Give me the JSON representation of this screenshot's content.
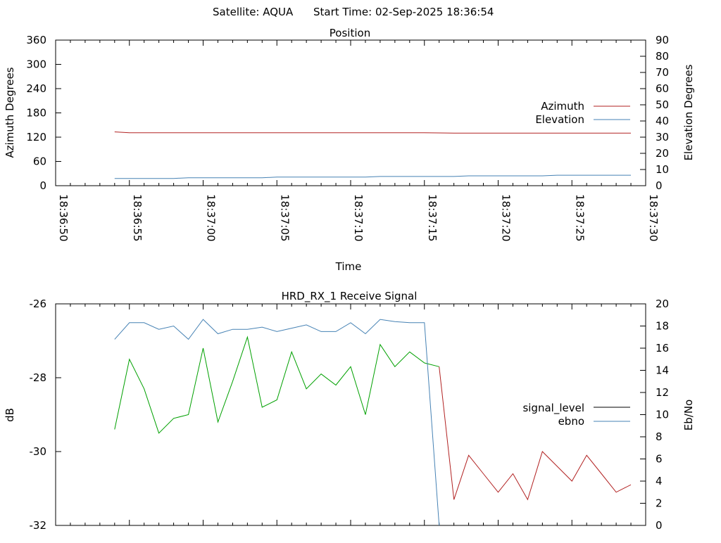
{
  "header": {
    "satellite": "Satellite: AQUA",
    "start_time": "Start Time: 02-Sep-2025 18:36:54"
  },
  "chart_data": [
    {
      "type": "line",
      "title": "Position",
      "xlabel": "Time",
      "ylabel": "Azimuth Degrees",
      "y2label": "Elevation Degrees",
      "ylim": [
        0,
        360
      ],
      "y2lim": [
        0,
        90
      ],
      "yticks": [
        "0",
        "60",
        "120",
        "180",
        "240",
        "300",
        "360"
      ],
      "y2ticks": [
        "0",
        "10",
        "20",
        "30",
        "40",
        "50",
        "60",
        "70",
        "80",
        "90"
      ],
      "xticks": [
        "18:36:50",
        "18:36:55",
        "18:37:00",
        "18:37:05",
        "18:37:10",
        "18:37:15",
        "18:37:20",
        "18:37:25",
        "18:37:30"
      ],
      "legend_position": "right",
      "series": [
        {
          "name": "Azimuth",
          "axis": "left",
          "color": "#b22222",
          "x": [
            "18:36:54",
            "18:36:55",
            "18:37:00",
            "18:37:05",
            "18:37:10",
            "18:37:15",
            "18:37:17",
            "18:37:20",
            "18:37:25",
            "18:37:29"
          ],
          "values": [
            133,
            131,
            131,
            131,
            131,
            131,
            130,
            130,
            130,
            130
          ]
        },
        {
          "name": "Elevation",
          "axis": "right",
          "color": "#4682b4",
          "x": [
            "18:36:54",
            "18:36:58",
            "18:36:59",
            "18:37:04",
            "18:37:05",
            "18:37:11",
            "18:37:12",
            "18:37:17",
            "18:37:18",
            "18:37:23",
            "18:37:24",
            "18:37:29"
          ],
          "values": [
            4.5,
            4.5,
            4.9,
            4.9,
            5.3,
            5.3,
            5.7,
            5.7,
            6.1,
            6.1,
            6.5,
            6.5
          ]
        }
      ]
    },
    {
      "type": "line",
      "title": "HRD_RX_1 Receive Signal",
      "xlabel": "",
      "ylabel": "dB",
      "y2label": "Eb/No",
      "ylim": [
        -32,
        -26
      ],
      "y2lim": [
        0,
        20
      ],
      "yticks": [
        "-32",
        "-30",
        "-28",
        "-26"
      ],
      "y2ticks": [
        "0",
        "2",
        "4",
        "6",
        "8",
        "10",
        "12",
        "14",
        "16",
        "18",
        "20"
      ],
      "legend_position": "right",
      "series": [
        {
          "name": "signal_level",
          "axis": "left",
          "color": "#00a000",
          "color_after_loss": "#b22222",
          "x": [
            0,
            1,
            2,
            3,
            4,
            5,
            6,
            7,
            8,
            9,
            10,
            11,
            12,
            13,
            14,
            15,
            16,
            17,
            18,
            19,
            20,
            21,
            22,
            23,
            24,
            25,
            26,
            27,
            28,
            29,
            30,
            31,
            32,
            33,
            34,
            35
          ],
          "values": [
            -29.4,
            -27.5,
            -28.3,
            -29.5,
            -29.1,
            -29.0,
            -27.2,
            -29.2,
            -28.1,
            -26.9,
            -28.8,
            -28.6,
            -27.3,
            -28.3,
            -27.9,
            -28.2,
            -27.7,
            -29.0,
            -27.1,
            -27.7,
            -27.3,
            -27.6,
            -27.7,
            -31.3,
            -30.1,
            -30.6,
            -31.1,
            -30.6,
            -31.3,
            -30.0,
            -30.4,
            -30.8,
            -30.1,
            -30.6,
            -31.1,
            -30.9
          ]
        },
        {
          "name": "ebno",
          "axis": "right",
          "color": "#4682b4",
          "x": [
            0,
            1,
            2,
            3,
            4,
            5,
            6,
            7,
            8,
            9,
            10,
            11,
            12,
            13,
            14,
            15,
            16,
            17,
            18,
            19,
            20,
            21,
            22
          ],
          "values": [
            16.8,
            18.3,
            18.3,
            17.7,
            18.0,
            16.8,
            18.6,
            17.3,
            17.7,
            17.7,
            17.9,
            17.5,
            17.8,
            18.1,
            17.5,
            17.5,
            18.3,
            17.3,
            18.6,
            18.4,
            18.3,
            18.3,
            0
          ]
        }
      ]
    }
  ]
}
